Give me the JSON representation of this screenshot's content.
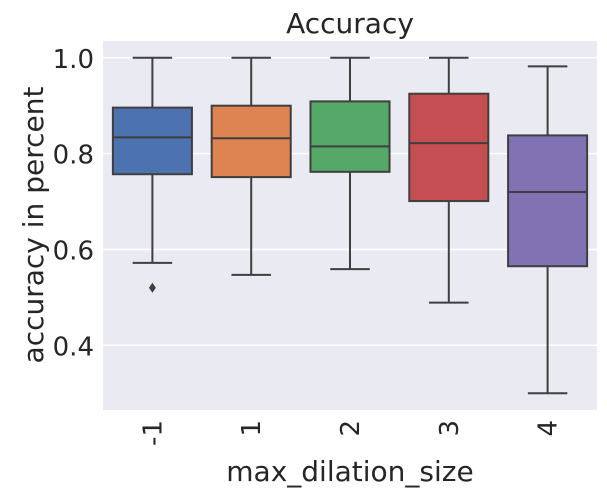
{
  "colors": {
    "plot_background": "#eaeaf2",
    "grid": "#ffffff",
    "line": "#3f3f3f",
    "boxes": [
      "#4c72b0",
      "#dd8452",
      "#55a868",
      "#c44e52",
      "#8172b3"
    ]
  },
  "chart_data": {
    "type": "box",
    "title": "Accuracy",
    "xlabel": "max_dilation_size",
    "ylabel": "accuracy in percent",
    "ylim": [
      0.265,
      1.035
    ],
    "yticks": [
      0.4,
      0.6,
      0.8,
      1.0
    ],
    "ytick_labels": [
      "0.4",
      "0.6",
      "0.8",
      "1.0"
    ],
    "categories": [
      "-1",
      "1",
      "2",
      "3",
      "4"
    ],
    "grid": true,
    "legend": "none",
    "boxes": [
      {
        "category": "-1",
        "whisker_low": 0.572,
        "q1": 0.757,
        "median": 0.834,
        "q3": 0.896,
        "whisker_high": 1.0,
        "outliers": [
          0.52
        ]
      },
      {
        "category": "1",
        "whisker_low": 0.547,
        "q1": 0.751,
        "median": 0.832,
        "q3": 0.9,
        "whisker_high": 1.0,
        "outliers": []
      },
      {
        "category": "2",
        "whisker_low": 0.559,
        "q1": 0.762,
        "median": 0.815,
        "q3": 0.909,
        "whisker_high": 1.0,
        "outliers": []
      },
      {
        "category": "3",
        "whisker_low": 0.489,
        "q1": 0.701,
        "median": 0.822,
        "q3": 0.925,
        "whisker_high": 1.0,
        "outliers": []
      },
      {
        "category": "4",
        "whisker_low": 0.3,
        "q1": 0.565,
        "median": 0.72,
        "q3": 0.838,
        "whisker_high": 0.982,
        "outliers": []
      }
    ]
  }
}
